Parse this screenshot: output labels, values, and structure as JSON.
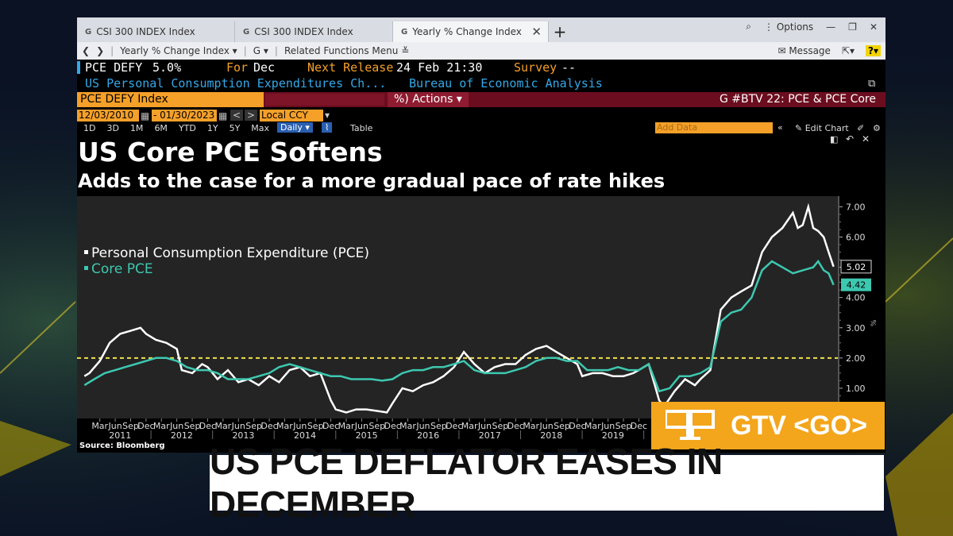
{
  "tabs": [
    {
      "icon": "G",
      "label": "CSI 300 INDEX Index"
    },
    {
      "icon": "G",
      "label": "CSI 300 INDEX Index"
    },
    {
      "icon": "G",
      "label": "Yearly % Change Index"
    }
  ],
  "window_controls": {
    "options": "Options"
  },
  "toolbar": {
    "crumb": "Yearly % Change Index",
    "g_menu": "G",
    "related": "Related Functions Menu",
    "message": "Message",
    "help": "?"
  },
  "security": {
    "ticker": "PCE DEFY",
    "value": "5.0%",
    "for_label": "For",
    "period": "Dec",
    "next_release_label": "Next Release",
    "next_release": "24 Feb 21:30",
    "survey_label": "Survey",
    "survey": "--",
    "description": "US Personal Consumption Expenditures Ch...",
    "source": "Bureau of Economic Analysis"
  },
  "command_bar": {
    "index": "PCE DEFY Index",
    "actions": "Actions",
    "right": "G #BTV 22: PCE & PCE Core"
  },
  "range_bar": {
    "start": "12/03/2010",
    "end": "01/30/2023",
    "currency": "Local CCY",
    "add_data": "Add Data",
    "edit_chart": "Edit Chart"
  },
  "periods": [
    "1D",
    "3D",
    "1M",
    "6M",
    "YTD",
    "1Y",
    "5Y",
    "Max"
  ],
  "frequency": "Daily",
  "table_label": "Table",
  "headline": {
    "title": "US Core PCE Softens",
    "subtitle": "Adds to the case for a more gradual pace of rate hikes"
  },
  "source_note": "Source: Bloomberg",
  "tv": {
    "gtv": "GTV <GO>",
    "banner": "US PCE DEFLATOR EASES IN DECEMBER"
  },
  "colors": {
    "pce": "#ffffff",
    "core": "#3dc8b0",
    "reference": "#f2e04a",
    "ticker_orange": "#f5a029",
    "description_blue": "#34a8e8",
    "command_red": "#6b0d1f",
    "gtv_orange": "#f3a51c"
  },
  "chart_data": {
    "type": "line",
    "title": "US Core PCE Softens",
    "subtitle": "Adds to the case for a more gradual pace of rate hikes",
    "ylim": [
      0,
      7.3
    ],
    "y_ticks": [
      "1.00",
      "2.00",
      "3.00",
      "4.00",
      "5.00",
      "6.00",
      "7.00"
    ],
    "x_tick_labels": [
      "Mar",
      "Jun",
      "Sep",
      "Dec",
      "Mar",
      "Jun",
      "Sep",
      "Dec",
      "Mar",
      "Jun",
      "Sep",
      "Dec",
      "Mar",
      "Jun",
      "Sep",
      "Dec",
      "Mar",
      "Jun",
      "Sep",
      "Dec",
      "Mar",
      "Jun",
      "Sep",
      "Dec",
      "Mar",
      "Jun",
      "Sep",
      "Dec",
      "Mar",
      "Jun",
      "Sep",
      "Dec",
      "Mar",
      "Jun",
      "Sep",
      "Dec"
    ],
    "year_labels": [
      "2011",
      "2012",
      "2013",
      "2014",
      "2015",
      "2016",
      "2017",
      "2018",
      "2019"
    ],
    "reference_line": 2.0,
    "legend_position": "top-left",
    "series": [
      {
        "name": "Personal Consumption Expenditure (PCE)",
        "last_label": "5.02",
        "points": [
          [
            2010.92,
            1.4
          ],
          [
            2011.0,
            1.5
          ],
          [
            2011.17,
            1.9
          ],
          [
            2011.33,
            2.5
          ],
          [
            2011.5,
            2.8
          ],
          [
            2011.67,
            2.9
          ],
          [
            2011.83,
            3.0
          ],
          [
            2011.92,
            2.8
          ],
          [
            2012.08,
            2.6
          ],
          [
            2012.25,
            2.5
          ],
          [
            2012.42,
            2.3
          ],
          [
            2012.5,
            1.6
          ],
          [
            2012.67,
            1.5
          ],
          [
            2012.83,
            1.8
          ],
          [
            2012.92,
            1.7
          ],
          [
            2013.08,
            1.3
          ],
          [
            2013.25,
            1.6
          ],
          [
            2013.42,
            1.2
          ],
          [
            2013.58,
            1.3
          ],
          [
            2013.75,
            1.1
          ],
          [
            2013.92,
            1.4
          ],
          [
            2014.08,
            1.2
          ],
          [
            2014.25,
            1.6
          ],
          [
            2014.42,
            1.7
          ],
          [
            2014.58,
            1.4
          ],
          [
            2014.75,
            1.5
          ],
          [
            2014.92,
            0.6
          ],
          [
            2015.0,
            0.3
          ],
          [
            2015.17,
            0.2
          ],
          [
            2015.33,
            0.3
          ],
          [
            2015.5,
            0.3
          ],
          [
            2015.67,
            0.25
          ],
          [
            2015.83,
            0.2
          ],
          [
            2015.92,
            0.5
          ],
          [
            2016.08,
            1.0
          ],
          [
            2016.25,
            0.9
          ],
          [
            2016.42,
            1.1
          ],
          [
            2016.58,
            1.2
          ],
          [
            2016.75,
            1.4
          ],
          [
            2016.92,
            1.7
          ],
          [
            2017.08,
            2.2
          ],
          [
            2017.25,
            1.8
          ],
          [
            2017.42,
            1.5
          ],
          [
            2017.58,
            1.7
          ],
          [
            2017.75,
            1.8
          ],
          [
            2017.92,
            1.8
          ],
          [
            2018.08,
            2.1
          ],
          [
            2018.25,
            2.3
          ],
          [
            2018.42,
            2.4
          ],
          [
            2018.58,
            2.2
          ],
          [
            2018.75,
            2.0
          ],
          [
            2018.92,
            1.8
          ],
          [
            2019.0,
            1.4
          ],
          [
            2019.17,
            1.5
          ],
          [
            2019.33,
            1.5
          ],
          [
            2019.5,
            1.4
          ],
          [
            2019.67,
            1.4
          ],
          [
            2019.83,
            1.5
          ],
          [
            2019.92,
            1.6
          ],
          [
            2020.08,
            1.8
          ],
          [
            2020.25,
            0.6
          ],
          [
            2020.33,
            0.4
          ],
          [
            2020.5,
            0.9
          ],
          [
            2020.67,
            1.3
          ],
          [
            2020.83,
            1.1
          ],
          [
            2020.92,
            1.3
          ],
          [
            2021.08,
            1.6
          ],
          [
            2021.25,
            3.6
          ],
          [
            2021.42,
            4.0
          ],
          [
            2021.58,
            4.2
          ],
          [
            2021.75,
            4.4
          ],
          [
            2021.92,
            5.5
          ],
          [
            2022.08,
            6.0
          ],
          [
            2022.25,
            6.3
          ],
          [
            2022.42,
            6.8
          ],
          [
            2022.5,
            6.3
          ],
          [
            2022.58,
            6.4
          ],
          [
            2022.67,
            7.0
          ],
          [
            2022.75,
            6.3
          ],
          [
            2022.83,
            6.2
          ],
          [
            2022.92,
            6.0
          ],
          [
            2023.0,
            5.5
          ],
          [
            2023.08,
            5.02
          ]
        ]
      },
      {
        "name": "Core PCE",
        "last_label": "4.42",
        "points": [
          [
            2010.92,
            1.1
          ],
          [
            2011.08,
            1.3
          ],
          [
            2011.25,
            1.5
          ],
          [
            2011.42,
            1.6
          ],
          [
            2011.58,
            1.7
          ],
          [
            2011.75,
            1.8
          ],
          [
            2011.92,
            1.9
          ],
          [
            2012.08,
            2.0
          ],
          [
            2012.25,
            2.0
          ],
          [
            2012.42,
            1.9
          ],
          [
            2012.58,
            1.7
          ],
          [
            2012.75,
            1.6
          ],
          [
            2012.92,
            1.6
          ],
          [
            2013.08,
            1.5
          ],
          [
            2013.25,
            1.3
          ],
          [
            2013.42,
            1.3
          ],
          [
            2013.58,
            1.3
          ],
          [
            2013.75,
            1.4
          ],
          [
            2013.92,
            1.5
          ],
          [
            2014.08,
            1.7
          ],
          [
            2014.25,
            1.8
          ],
          [
            2014.42,
            1.7
          ],
          [
            2014.58,
            1.6
          ],
          [
            2014.75,
            1.5
          ],
          [
            2014.92,
            1.4
          ],
          [
            2015.08,
            1.4
          ],
          [
            2015.25,
            1.3
          ],
          [
            2015.42,
            1.3
          ],
          [
            2015.58,
            1.3
          ],
          [
            2015.75,
            1.25
          ],
          [
            2015.92,
            1.3
          ],
          [
            2016.08,
            1.5
          ],
          [
            2016.25,
            1.6
          ],
          [
            2016.42,
            1.6
          ],
          [
            2016.58,
            1.7
          ],
          [
            2016.75,
            1.7
          ],
          [
            2016.92,
            1.8
          ],
          [
            2017.08,
            1.9
          ],
          [
            2017.25,
            1.6
          ],
          [
            2017.42,
            1.5
          ],
          [
            2017.58,
            1.5
          ],
          [
            2017.75,
            1.5
          ],
          [
            2017.92,
            1.6
          ],
          [
            2018.08,
            1.7
          ],
          [
            2018.25,
            1.9
          ],
          [
            2018.42,
            2.0
          ],
          [
            2018.58,
            2.0
          ],
          [
            2018.75,
            1.9
          ],
          [
            2018.92,
            1.9
          ],
          [
            2019.08,
            1.6
          ],
          [
            2019.25,
            1.6
          ],
          [
            2019.42,
            1.6
          ],
          [
            2019.58,
            1.7
          ],
          [
            2019.75,
            1.6
          ],
          [
            2019.92,
            1.6
          ],
          [
            2020.08,
            1.8
          ],
          [
            2020.25,
            0.9
          ],
          [
            2020.42,
            1.0
          ],
          [
            2020.58,
            1.4
          ],
          [
            2020.75,
            1.4
          ],
          [
            2020.92,
            1.5
          ],
          [
            2021.08,
            1.7
          ],
          [
            2021.25,
            3.2
          ],
          [
            2021.42,
            3.5
          ],
          [
            2021.58,
            3.6
          ],
          [
            2021.75,
            4.0
          ],
          [
            2021.92,
            4.9
          ],
          [
            2022.08,
            5.2
          ],
          [
            2022.25,
            5.0
          ],
          [
            2022.42,
            4.8
          ],
          [
            2022.58,
            4.9
          ],
          [
            2022.75,
            5.0
          ],
          [
            2022.83,
            5.2
          ],
          [
            2022.92,
            4.9
          ],
          [
            2023.0,
            4.8
          ],
          [
            2023.08,
            4.42
          ]
        ]
      }
    ]
  }
}
